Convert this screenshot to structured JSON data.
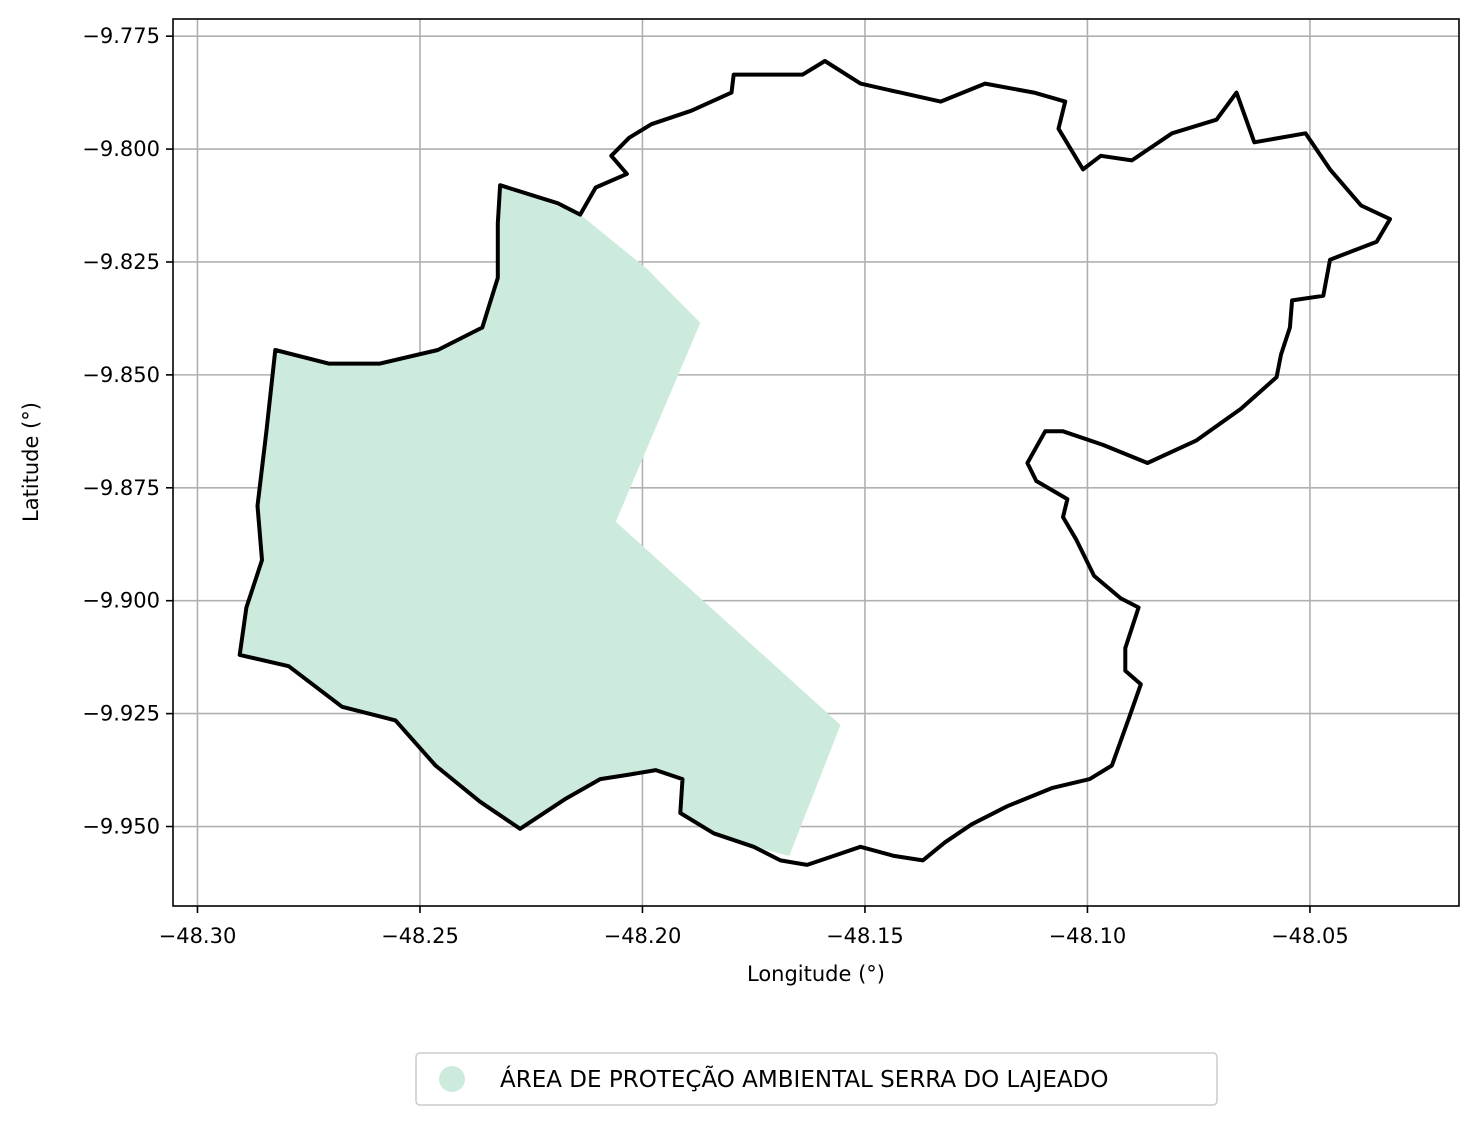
{
  "chart_data": {
    "type": "map",
    "xlabel": "Longitude (°)",
    "ylabel": "Latitude (°)",
    "xlim": [
      -48.3055,
      -48.0165
    ],
    "ylim": [
      -9.9676,
      -9.7712
    ],
    "grid": true,
    "x_ticks": [
      {
        "value": -48.3,
        "label": "−48.30"
      },
      {
        "value": -48.25,
        "label": "−48.25"
      },
      {
        "value": -48.2,
        "label": "−48.20"
      },
      {
        "value": -48.15,
        "label": "−48.15"
      },
      {
        "value": -48.1,
        "label": "−48.10"
      },
      {
        "value": -48.05,
        "label": "−48.05"
      }
    ],
    "y_ticks": [
      {
        "value": -9.775,
        "label": "−9.775"
      },
      {
        "value": -9.8,
        "label": "−9.800"
      },
      {
        "value": -9.825,
        "label": "−9.825"
      },
      {
        "value": -9.85,
        "label": "−9.850"
      },
      {
        "value": -9.875,
        "label": "−9.875"
      },
      {
        "value": -9.9,
        "label": "−9.900"
      },
      {
        "value": -9.925,
        "label": "−9.925"
      },
      {
        "value": -9.95,
        "label": "−9.950"
      }
    ],
    "protected_area": {
      "name": "ÁREA DE PROTEÇÃO AMBIENTAL SERRA DO LAJEADO",
      "color": "#cdebdc",
      "polygon": [
        [
          -48.232,
          -9.808
        ],
        [
          -48.214,
          -9.8145
        ],
        [
          -48.199,
          -9.8265
        ],
        [
          -48.187,
          -9.8385
        ],
        [
          -48.206,
          -9.8825
        ],
        [
          -48.1555,
          -9.9275
        ],
        [
          -48.167,
          -9.9565
        ],
        [
          -48.175,
          -9.9545
        ],
        [
          -48.184,
          -9.9515
        ],
        [
          -48.192,
          -9.947
        ],
        [
          -48.191,
          -9.9395
        ],
        [
          -48.197,
          -9.9375
        ],
        [
          -48.203,
          -9.9385
        ],
        [
          -48.21,
          -9.9395
        ],
        [
          -48.217,
          -9.944
        ],
        [
          -48.228,
          -9.9505
        ],
        [
          -48.237,
          -9.9445
        ],
        [
          -48.247,
          -9.9365
        ],
        [
          -48.256,
          -9.9265
        ],
        [
          -48.268,
          -9.9235
        ],
        [
          -48.28,
          -9.9145
        ],
        [
          -48.291,
          -9.912
        ],
        [
          -48.289,
          -9.9015
        ],
        [
          -48.285,
          -9.891
        ],
        [
          -48.2865,
          -9.879
        ],
        [
          -48.2845,
          -9.8625
        ],
        [
          -48.2825,
          -9.8445
        ],
        [
          -48.2705,
          -9.8475
        ],
        [
          -48.259,
          -9.8475
        ],
        [
          -48.246,
          -9.8445
        ],
        [
          -48.236,
          -9.8395
        ],
        [
          -48.2325,
          -9.8285
        ],
        [
          -48.2325,
          -9.8165
        ]
      ]
    },
    "boundary": {
      "color": "#000000",
      "polygon": [
        [
          -48.232,
          -9.808
        ],
        [
          -48.219,
          -9.812
        ],
        [
          -48.214,
          -9.8145
        ],
        [
          -48.2105,
          -9.8085
        ],
        [
          -48.2035,
          -9.8055
        ],
        [
          -48.207,
          -9.8015
        ],
        [
          -48.203,
          -9.7975
        ],
        [
          -48.198,
          -9.7945
        ],
        [
          -48.189,
          -9.7915
        ],
        [
          -48.18,
          -9.7875
        ],
        [
          -48.1795,
          -9.7835
        ],
        [
          -48.17,
          -9.7835
        ],
        [
          -48.164,
          -9.7835
        ],
        [
          -48.159,
          -9.7805
        ],
        [
          -48.151,
          -9.7855
        ],
        [
          -48.142,
          -9.7875
        ],
        [
          -48.133,
          -9.7895
        ],
        [
          -48.123,
          -9.7855
        ],
        [
          -48.112,
          -9.7875
        ],
        [
          -48.105,
          -9.7895
        ],
        [
          -48.1065,
          -9.7955
        ],
        [
          -48.101,
          -9.8045
        ],
        [
          -48.097,
          -9.8015
        ],
        [
          -48.09,
          -9.8025
        ],
        [
          -48.081,
          -9.7965
        ],
        [
          -48.071,
          -9.7935
        ],
        [
          -48.0665,
          -9.7875
        ],
        [
          -48.0625,
          -9.7985
        ],
        [
          -48.051,
          -9.7965
        ],
        [
          -48.0455,
          -9.8045
        ],
        [
          -48.0385,
          -9.8125
        ],
        [
          -48.032,
          -9.8155
        ],
        [
          -48.035,
          -9.8205
        ],
        [
          -48.0455,
          -9.8245
        ],
        [
          -48.047,
          -9.8325
        ],
        [
          -48.054,
          -9.8335
        ],
        [
          -48.0545,
          -9.8395
        ],
        [
          -48.0565,
          -9.8455
        ],
        [
          -48.0575,
          -9.8505
        ],
        [
          -48.0655,
          -9.8575
        ],
        [
          -48.0755,
          -9.8645
        ],
        [
          -48.0865,
          -9.8695
        ],
        [
          -48.0965,
          -9.8655
        ],
        [
          -48.1055,
          -9.8625
        ],
        [
          -48.1095,
          -9.8625
        ],
        [
          -48.1135,
          -9.8695
        ],
        [
          -48.1115,
          -9.8735
        ],
        [
          -48.1045,
          -9.8775
        ],
        [
          -48.1055,
          -9.8815
        ],
        [
          -48.1025,
          -9.8865
        ],
        [
          -48.0985,
          -9.8945
        ],
        [
          -48.0925,
          -9.8995
        ],
        [
          -48.0885,
          -9.9015
        ],
        [
          -48.0915,
          -9.9105
        ],
        [
          -48.0915,
          -9.9155
        ],
        [
          -48.088,
          -9.9185
        ],
        [
          -48.0905,
          -9.9255
        ],
        [
          -48.0945,
          -9.9365
        ],
        [
          -48.0995,
          -9.9395
        ],
        [
          -48.108,
          -9.9415
        ],
        [
          -48.118,
          -9.9455
        ],
        [
          -48.126,
          -9.9495
        ],
        [
          -48.132,
          -9.9535
        ],
        [
          -48.137,
          -9.9575
        ],
        [
          -48.1435,
          -9.9565
        ],
        [
          -48.151,
          -9.9545
        ],
        [
          -48.157,
          -9.9565
        ],
        [
          -48.163,
          -9.9585
        ],
        [
          -48.169,
          -9.9575
        ],
        [
          -48.175,
          -9.9545
        ],
        [
          -48.184,
          -9.9515
        ],
        [
          -48.1915,
          -9.947
        ],
        [
          -48.191,
          -9.9395
        ],
        [
          -48.197,
          -9.9375
        ],
        [
          -48.203,
          -9.9385
        ],
        [
          -48.2095,
          -9.9395
        ],
        [
          -48.2175,
          -9.944
        ],
        [
          -48.2275,
          -9.9505
        ],
        [
          -48.2365,
          -9.9445
        ],
        [
          -48.2465,
          -9.9365
        ],
        [
          -48.2555,
          -9.9265
        ],
        [
          -48.2675,
          -9.9235
        ],
        [
          -48.2795,
          -9.9145
        ],
        [
          -48.2905,
          -9.912
        ],
        [
          -48.289,
          -9.9015
        ],
        [
          -48.2855,
          -9.891
        ],
        [
          -48.2865,
          -9.879
        ],
        [
          -48.2845,
          -9.8625
        ],
        [
          -48.2825,
          -9.8445
        ],
        [
          -48.2705,
          -9.8475
        ],
        [
          -48.259,
          -9.8475
        ],
        [
          -48.246,
          -9.8445
        ],
        [
          -48.236,
          -9.8395
        ],
        [
          -48.2325,
          -9.8285
        ],
        [
          -48.2325,
          -9.8165
        ]
      ]
    },
    "legend": {
      "position": "bottom-center",
      "entries": [
        {
          "label": "ÁREA DE PROTEÇÃO AMBIENTAL SERRA DO LAJEADO",
          "color": "#cdebdc",
          "marker": "circle"
        }
      ]
    }
  }
}
